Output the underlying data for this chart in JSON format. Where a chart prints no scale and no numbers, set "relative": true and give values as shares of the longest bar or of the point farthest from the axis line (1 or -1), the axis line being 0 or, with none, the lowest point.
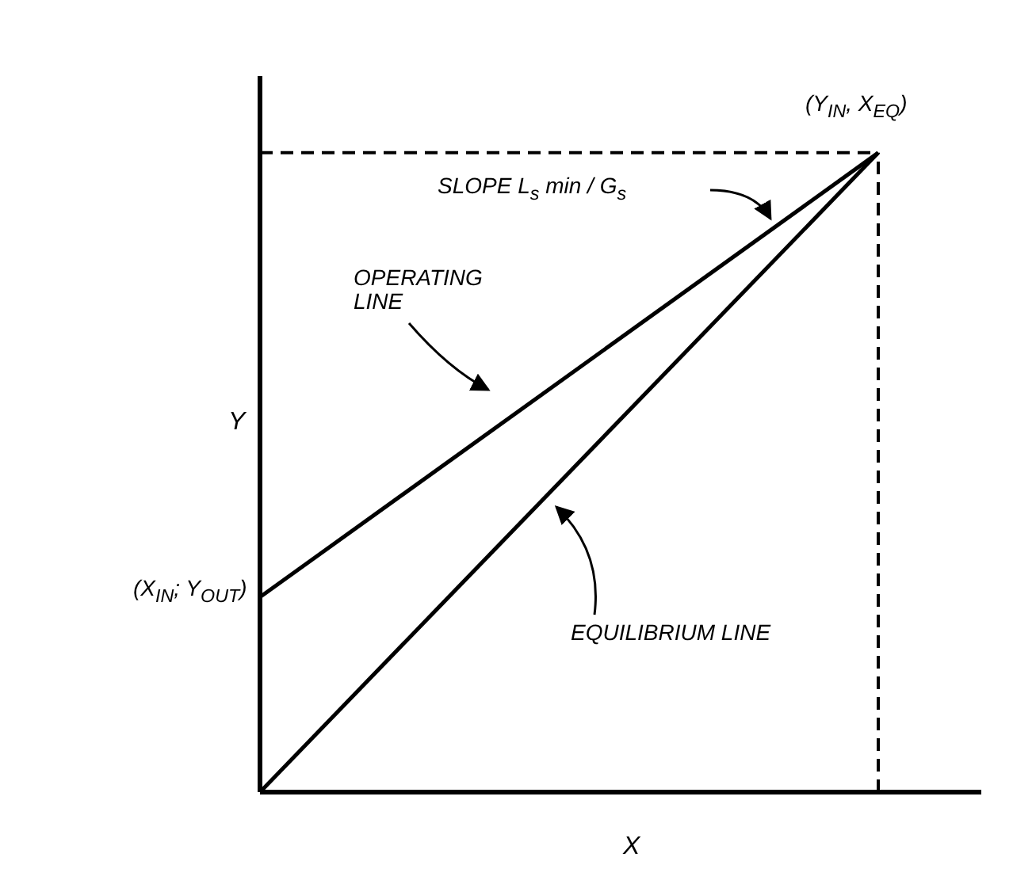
{
  "chart_data": {
    "type": "line",
    "relative": true,
    "xlabel": "X",
    "ylabel": "Y",
    "categories": [
      null,
      null,
      null,
      null,
      null,
      null,
      null,
      null
    ],
    "series": [
      {
        "color": "#000000",
        "values": [
          0.305,
          null,
          null,
          null,
          null,
          null,
          1,
          null
        ]
      },
      {
        "color": "#000000",
        "values": [
          0,
          null,
          null,
          null,
          null,
          null,
          1,
          null
        ]
      },
      {
        "color": "#000000",
        "line_style": "dashed",
        "values": [
          1,
          1,
          1,
          1,
          1,
          1,
          1,
          null
        ]
      }
    ],
    "ref_lines": [
      {
        "axis": "x",
        "value": null,
        "line_style": "dashed",
        "color": "#000000"
      }
    ],
    "annotations": [
      "(Y$_{IN}$, X$_{EQ}$)",
      "SLOPE L$_{s}$ min / G$_{s}$",
      "OPERATING LINE",
      "EQUILIBRIUM LINE",
      "(X$_{IN}$; Y$_{OUT}$)"
    ],
    "marker": "none",
    "line_style": "solid"
  }
}
